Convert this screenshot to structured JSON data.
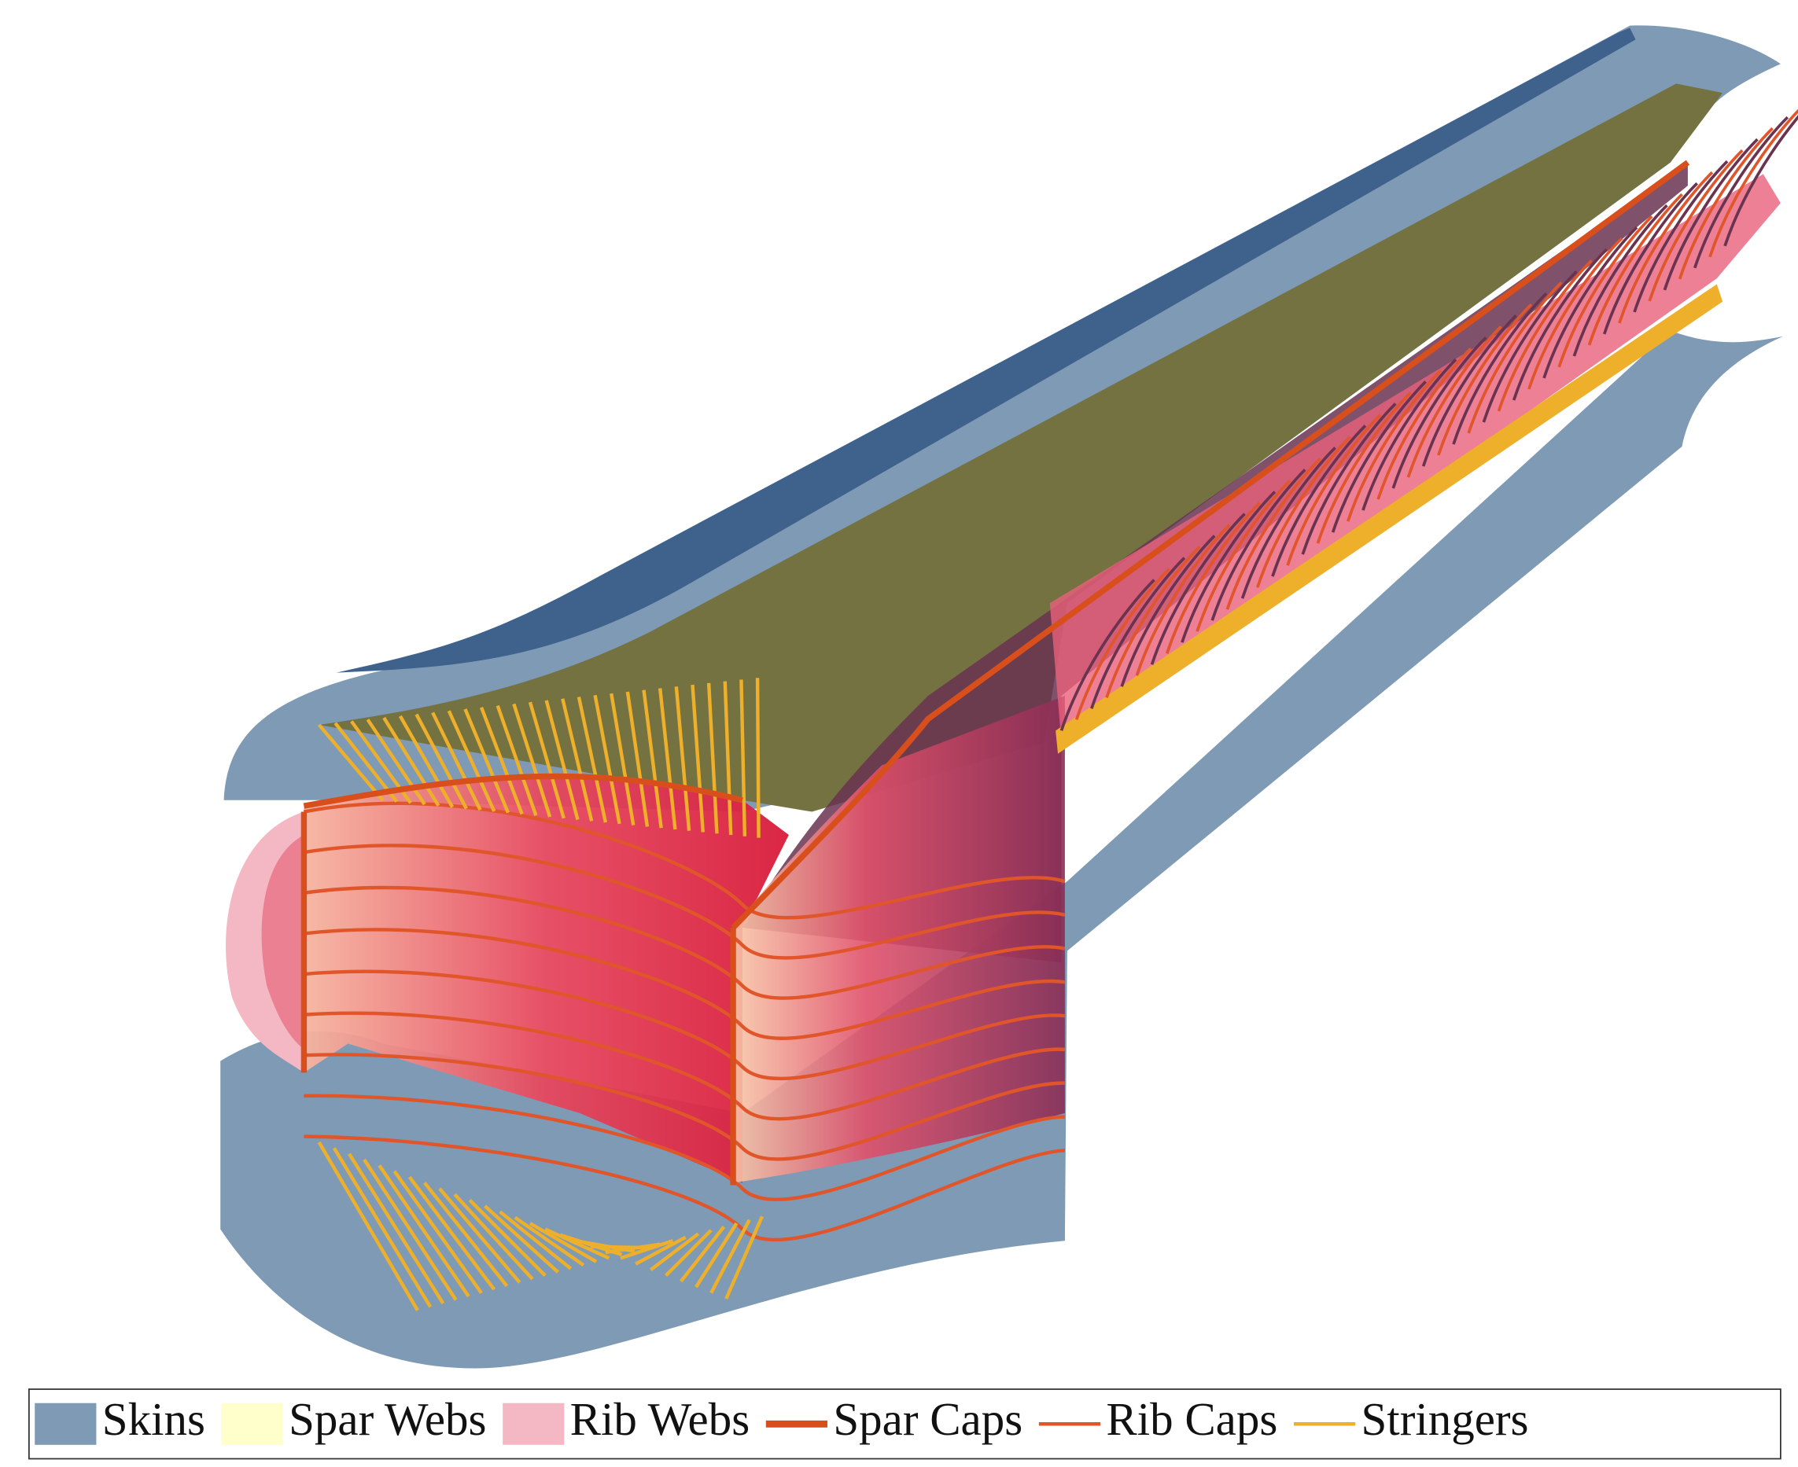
{
  "legend": {
    "items": [
      {
        "label": "Skins",
        "color": "#7f9ab5",
        "style": "patch"
      },
      {
        "label": "Spar Webs",
        "color": "#ffffcc",
        "style": "patch"
      },
      {
        "label": "Rib Webs",
        "color": "#f4b8c4",
        "style": "patch"
      },
      {
        "label": "Spar Caps",
        "color": "#d94f1c",
        "style": "thick-line"
      },
      {
        "label": "Rib Caps",
        "color": "#e0552a",
        "style": "line"
      },
      {
        "label": "Stringers",
        "color": "#eeb02a",
        "style": "line"
      }
    ]
  }
}
